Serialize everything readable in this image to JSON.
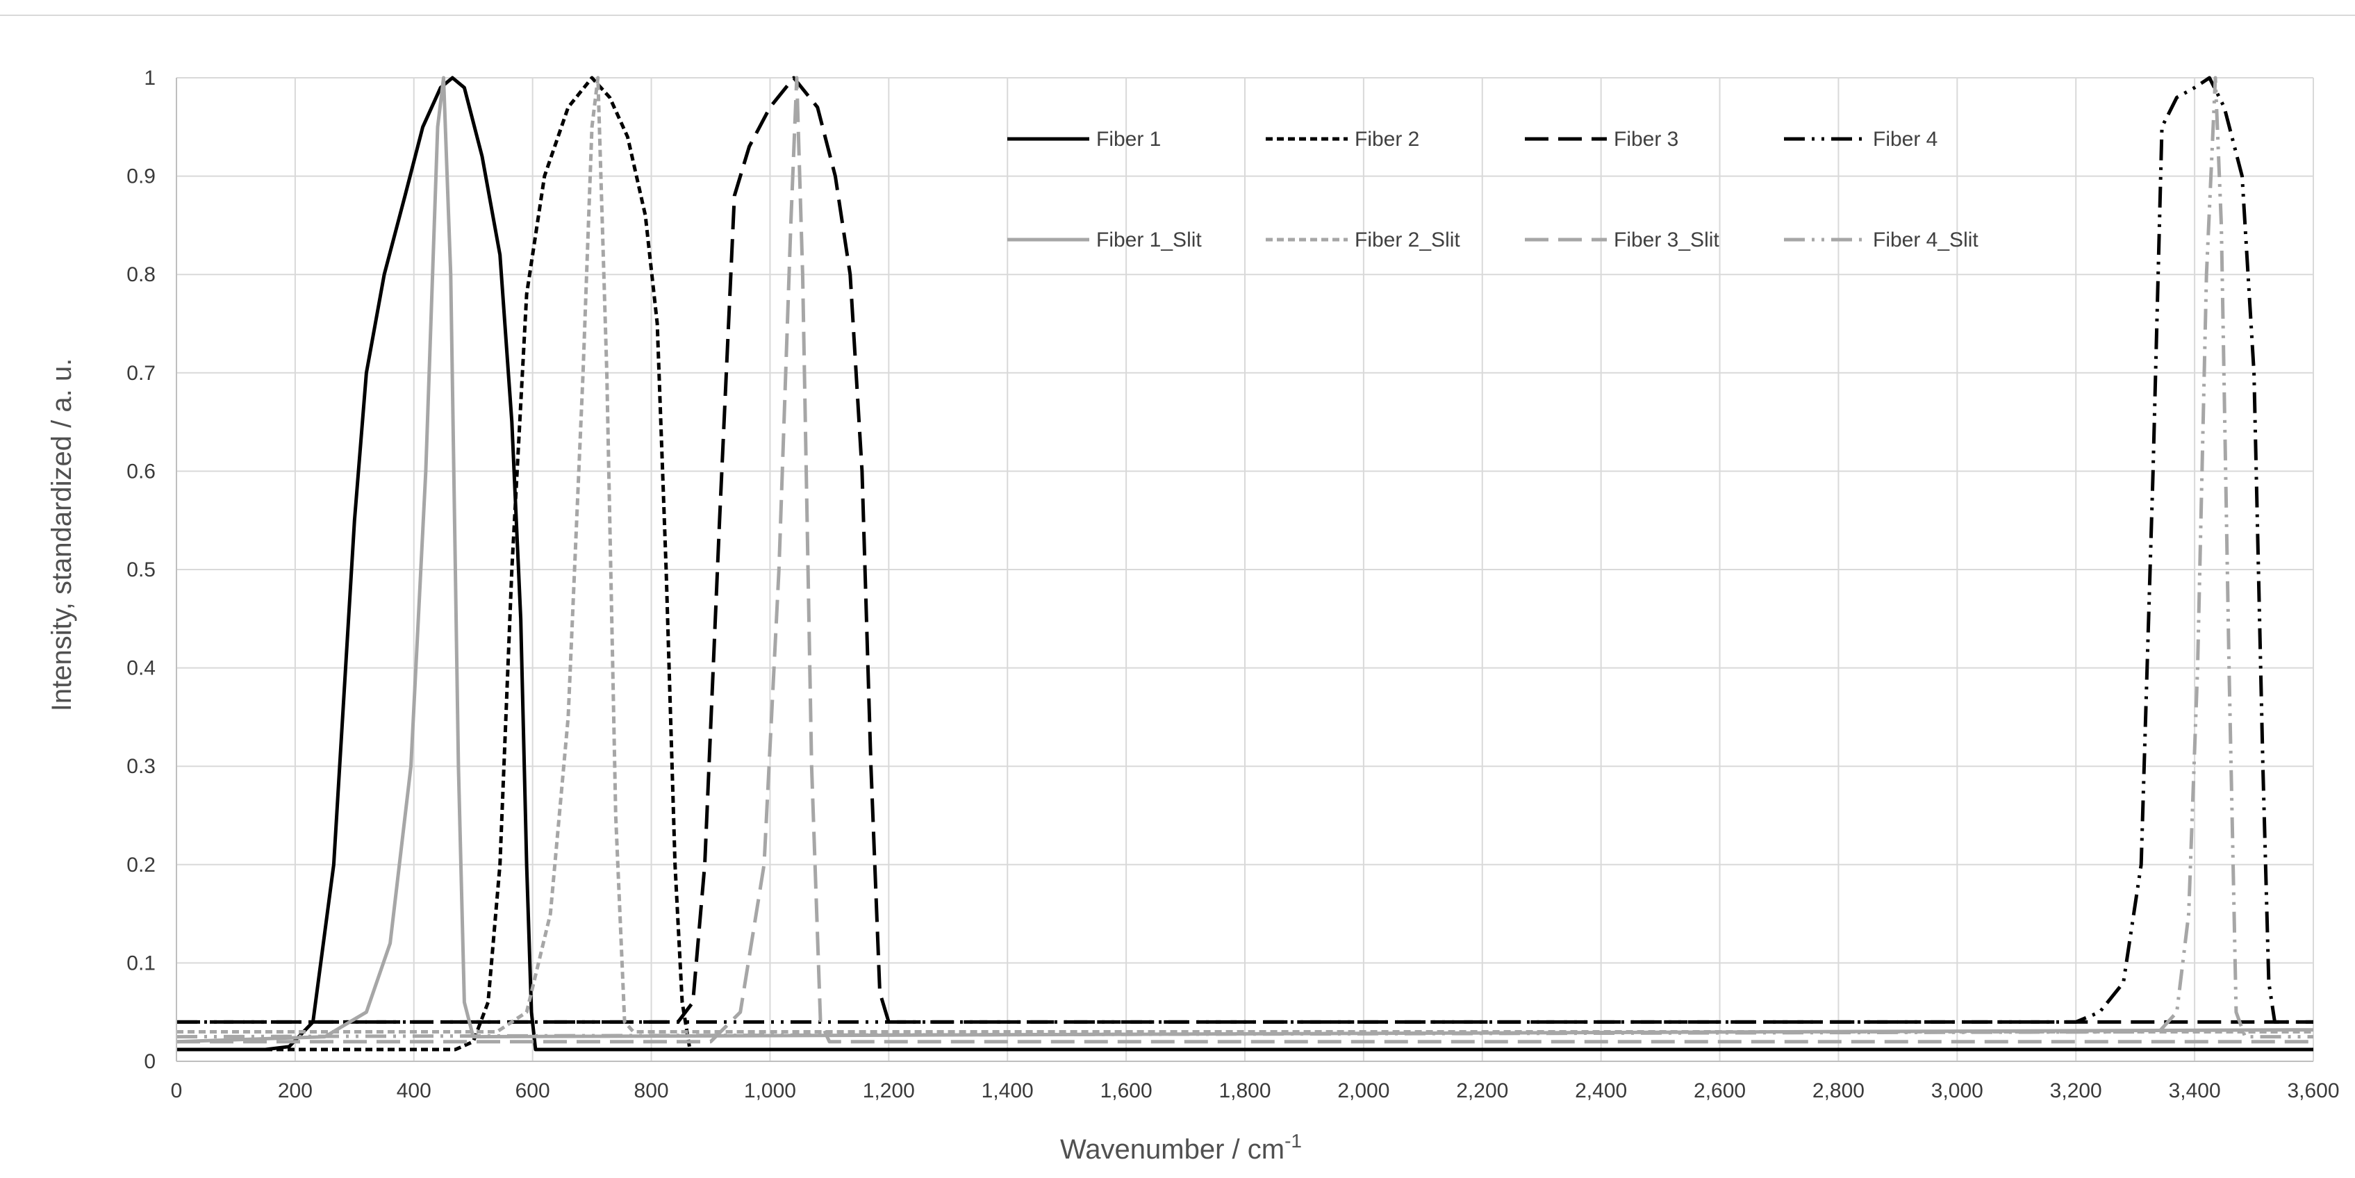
{
  "chart_data": {
    "type": "line",
    "title": "",
    "xlabel": "Wavenumber / cm",
    "xlabel_superscript": "-1",
    "ylabel": "Intensity, standardized / a. u.",
    "xlim": [
      0,
      3600
    ],
    "ylim": [
      0,
      1
    ],
    "x_ticks": [
      0,
      200,
      400,
      600,
      800,
      1000,
      1200,
      1400,
      1600,
      1800,
      2000,
      2200,
      2400,
      2600,
      2800,
      3000,
      3200,
      3400,
      3600
    ],
    "x_tick_labels": [
      "0",
      "200",
      "400",
      "600",
      "800",
      "1,000",
      "1,200",
      "1,400",
      "1,600",
      "1,800",
      "2,000",
      "2,200",
      "2,400",
      "2,600",
      "2,800",
      "3,000",
      "3,200",
      "3,400",
      "3,600"
    ],
    "y_ticks": [
      0,
      0.1,
      0.2,
      0.3,
      0.4,
      0.5,
      0.6,
      0.7,
      0.8,
      0.9,
      1
    ],
    "y_tick_labels": [
      "0",
      "0.1",
      "0.2",
      "0.3",
      "0.4",
      "0.5",
      "0.6",
      "0.7",
      "0.8",
      "0.9",
      "1"
    ],
    "grid": true,
    "legend_position": "top-right",
    "series": [
      {
        "name": "Fiber 1",
        "color": "#000000",
        "dash": "solid",
        "points": [
          [
            0,
            0.012
          ],
          [
            150,
            0.012
          ],
          [
            190,
            0.015
          ],
          [
            230,
            0.04
          ],
          [
            265,
            0.2
          ],
          [
            300,
            0.55
          ],
          [
            320,
            0.7
          ],
          [
            350,
            0.8
          ],
          [
            385,
            0.88
          ],
          [
            415,
            0.95
          ],
          [
            445,
            0.99
          ],
          [
            465,
            1.0
          ],
          [
            485,
            0.99
          ],
          [
            515,
            0.92
          ],
          [
            545,
            0.82
          ],
          [
            565,
            0.65
          ],
          [
            580,
            0.45
          ],
          [
            590,
            0.2
          ],
          [
            598,
            0.05
          ],
          [
            605,
            0.012
          ],
          [
            3600,
            0.012
          ]
        ]
      },
      {
        "name": "Fiber 2",
        "color": "#000000",
        "dash": "short",
        "points": [
          [
            0,
            0.012
          ],
          [
            470,
            0.012
          ],
          [
            500,
            0.02
          ],
          [
            525,
            0.06
          ],
          [
            545,
            0.2
          ],
          [
            565,
            0.5
          ],
          [
            590,
            0.78
          ],
          [
            620,
            0.9
          ],
          [
            660,
            0.97
          ],
          [
            700,
            1.0
          ],
          [
            730,
            0.98
          ],
          [
            760,
            0.94
          ],
          [
            790,
            0.86
          ],
          [
            810,
            0.75
          ],
          [
            825,
            0.5
          ],
          [
            840,
            0.2
          ],
          [
            852,
            0.06
          ],
          [
            865,
            0.012
          ],
          [
            3600,
            0.012
          ]
        ]
      },
      {
        "name": "Fiber 3",
        "color": "#000000",
        "dash": "long",
        "points": [
          [
            0,
            0.04
          ],
          [
            845,
            0.04
          ],
          [
            870,
            0.06
          ],
          [
            890,
            0.2
          ],
          [
            915,
            0.55
          ],
          [
            940,
            0.88
          ],
          [
            965,
            0.93
          ],
          [
            1000,
            0.97
          ],
          [
            1040,
            1.0
          ],
          [
            1080,
            0.97
          ],
          [
            1110,
            0.9
          ],
          [
            1135,
            0.8
          ],
          [
            1155,
            0.6
          ],
          [
            1170,
            0.3
          ],
          [
            1185,
            0.07
          ],
          [
            1200,
            0.04
          ],
          [
            3600,
            0.04
          ]
        ]
      },
      {
        "name": "Fiber 4",
        "color": "#000000",
        "dash": "dashdotdot",
        "points": [
          [
            0,
            0.04
          ],
          [
            3200,
            0.04
          ],
          [
            3240,
            0.05
          ],
          [
            3280,
            0.08
          ],
          [
            3310,
            0.2
          ],
          [
            3330,
            0.6
          ],
          [
            3345,
            0.95
          ],
          [
            3370,
            0.98
          ],
          [
            3400,
            0.99
          ],
          [
            3425,
            1.0
          ],
          [
            3450,
            0.97
          ],
          [
            3480,
            0.9
          ],
          [
            3500,
            0.7
          ],
          [
            3515,
            0.3
          ],
          [
            3525,
            0.08
          ],
          [
            3535,
            0.04
          ],
          [
            3600,
            0.04
          ]
        ]
      },
      {
        "name": "Fiber 1_Slit",
        "color": "#a6a6a6",
        "dash": "solid",
        "points": [
          [
            0,
            0.02
          ],
          [
            250,
            0.025
          ],
          [
            320,
            0.05
          ],
          [
            360,
            0.12
          ],
          [
            395,
            0.3
          ],
          [
            420,
            0.6
          ],
          [
            440,
            0.95
          ],
          [
            450,
            1.0
          ],
          [
            462,
            0.8
          ],
          [
            475,
            0.3
          ],
          [
            485,
            0.06
          ],
          [
            500,
            0.025
          ],
          [
            3600,
            0.032
          ]
        ]
      },
      {
        "name": "Fiber 2_Slit",
        "color": "#a6a6a6",
        "dash": "short",
        "points": [
          [
            0,
            0.03
          ],
          [
            540,
            0.03
          ],
          [
            590,
            0.05
          ],
          [
            630,
            0.15
          ],
          [
            660,
            0.35
          ],
          [
            685,
            0.7
          ],
          [
            700,
            0.95
          ],
          [
            710,
            1.0
          ],
          [
            725,
            0.7
          ],
          [
            740,
            0.25
          ],
          [
            755,
            0.04
          ],
          [
            770,
            0.03
          ],
          [
            3600,
            0.03
          ]
        ]
      },
      {
        "name": "Fiber 3_Slit",
        "color": "#a6a6a6",
        "dash": "long",
        "points": [
          [
            0,
            0.02
          ],
          [
            900,
            0.02
          ],
          [
            950,
            0.05
          ],
          [
            990,
            0.2
          ],
          [
            1015,
            0.5
          ],
          [
            1035,
            0.85
          ],
          [
            1045,
            1.0
          ],
          [
            1055,
            0.8
          ],
          [
            1070,
            0.3
          ],
          [
            1085,
            0.04
          ],
          [
            1100,
            0.02
          ],
          [
            3600,
            0.02
          ]
        ]
      },
      {
        "name": "Fiber 4_Slit",
        "color": "#a6a6a6",
        "dash": "dashdotdot",
        "points": [
          [
            0,
            0.025
          ],
          [
            3340,
            0.03
          ],
          [
            3370,
            0.05
          ],
          [
            3390,
            0.15
          ],
          [
            3405,
            0.4
          ],
          [
            3420,
            0.8
          ],
          [
            3435,
            1.0
          ],
          [
            3445,
            0.85
          ],
          [
            3458,
            0.4
          ],
          [
            3470,
            0.05
          ],
          [
            3485,
            0.025
          ],
          [
            3600,
            0.025
          ]
        ]
      }
    ]
  }
}
